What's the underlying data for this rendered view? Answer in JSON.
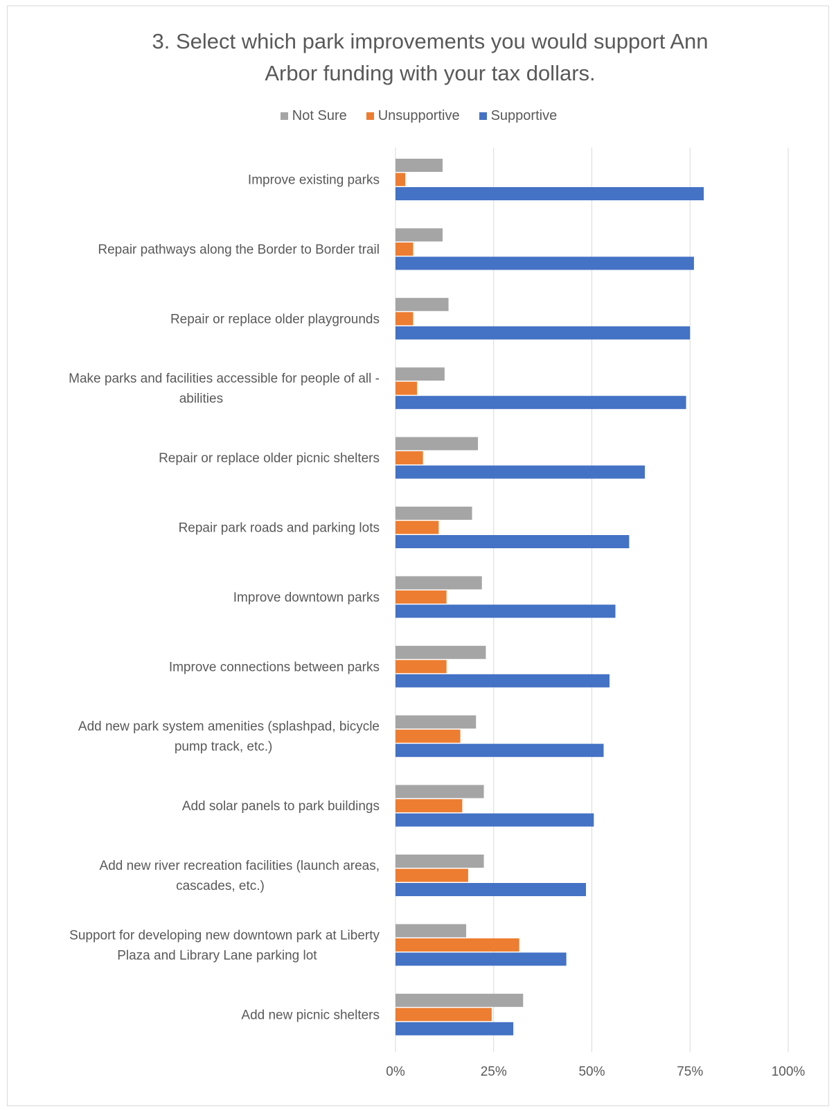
{
  "chart_data": {
    "type": "bar",
    "orientation": "horizontal",
    "title": "3. Select which park improvements you would support Ann Arbor funding with your tax dollars.",
    "title_lines": [
      "3. Select which park improvements you would support Ann",
      "Arbor funding with your tax dollars."
    ],
    "legend_position": "top",
    "grid": true,
    "xlim": [
      0,
      100
    ],
    "x_ticks": [
      "0%",
      "25%",
      "50%",
      "75%",
      "100%"
    ],
    "categories": [
      "Improve existing parks",
      "Repair pathways along the Border to Border trail",
      "Repair or replace older playgrounds",
      "Make parks and facilities accessible for people of all - abilities",
      "Repair or replace older picnic shelters",
      "Repair park roads and parking lots",
      "Improve downtown parks",
      "Improve connections between parks",
      "Add new park system amenities (splashpad, bicycle pump track, etc.)",
      "Add solar panels to park buildings",
      "Add new river recreation facilities (launch areas, cascades, etc.)",
      "Support for developing new downtown park at Liberty Plaza and Library Lane parking lot",
      "Add new picnic shelters"
    ],
    "category_lines": [
      [
        "Improve existing parks"
      ],
      [
        "Repair pathways along the Border to Border trail"
      ],
      [
        "Repair or replace older playgrounds"
      ],
      [
        "Make parks and facilities accessible for people of all -",
        "abilities"
      ],
      [
        "Repair or replace older picnic shelters"
      ],
      [
        "Repair park roads and parking lots"
      ],
      [
        "Improve downtown parks"
      ],
      [
        "Improve connections between parks"
      ],
      [
        "Add new park system amenities (splashpad, bicycle",
        "pump track, etc.)"
      ],
      [
        "Add solar panels to park buildings"
      ],
      [
        "Add new river recreation facilities (launch areas,",
        "cascades, etc.)"
      ],
      [
        "Support for developing new downtown park at Liberty",
        "Plaza and Library Lane parking lot"
      ],
      [
        "Add new picnic shelters"
      ]
    ],
    "series": [
      {
        "name": "Not Sure",
        "color": "#a5a5a5",
        "values": [
          12,
          12,
          13.5,
          12.5,
          21,
          19.5,
          22,
          23,
          20.5,
          22.5,
          22.5,
          18,
          32.5
        ]
      },
      {
        "name": "Unsupportive",
        "color": "#ed7d31",
        "values": [
          2.5,
          4.5,
          4.5,
          5.5,
          7,
          11,
          13,
          13,
          16.5,
          17,
          18.5,
          31.5,
          24.5
        ]
      },
      {
        "name": "Supportive",
        "color": "#4472c4",
        "values": [
          78.5,
          76,
          75,
          74,
          63.5,
          59.5,
          56,
          54.5,
          53,
          50.5,
          48.5,
          43.5,
          30
        ]
      }
    ]
  }
}
